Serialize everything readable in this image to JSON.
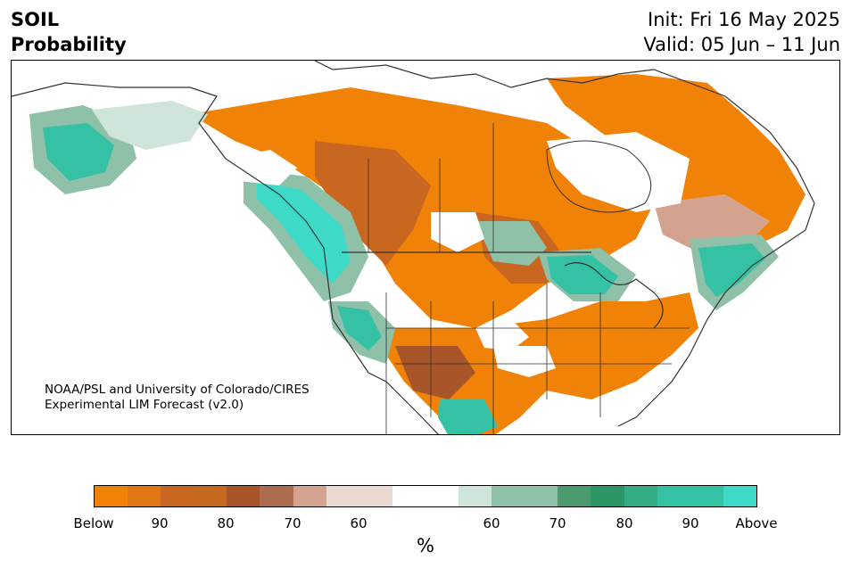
{
  "header": {
    "variable": "SOIL",
    "product": "Probability",
    "init": "Init: Fri 16 May 2025",
    "valid": "Valid: 05 Jun – 11 Jun"
  },
  "map": {
    "region": "North America",
    "credit_line1": "NOAA/PSL and University of Colorado/CIRES",
    "credit_line2": "Experimental LIM Forecast (v2.0)",
    "colors": {
      "below_strong": "#f08208",
      "below_mid": "#c9661f",
      "below_dark": "#a9552a",
      "below_light": "#d3a38f",
      "near_normal": "#ffffff",
      "above_light": "#cfe5da",
      "above_mid": "#8fc0a8",
      "above_dark": "#2d9666",
      "above_strong": "#3ddac8",
      "borders": "#333333"
    }
  },
  "colorbar": {
    "unit": "%",
    "colors": [
      "#f08208",
      "#e07714",
      "#c9661f",
      "#c56820",
      "#a9552a",
      "#ae6c50",
      "#d3a38f",
      "#ead9d0",
      "#ead9d0",
      "#ffffff",
      "#ffffff",
      "#cfe5da",
      "#8fc0a8",
      "#8fc0a8",
      "#4c9b6e",
      "#2d9666",
      "#34ad87",
      "#35c1a4",
      "#35c1a4",
      "#3ddac8"
    ],
    "tick_labels": [
      "Below",
      "90",
      "80",
      "70",
      "60",
      "60",
      "70",
      "80",
      "90",
      "Above"
    ]
  }
}
